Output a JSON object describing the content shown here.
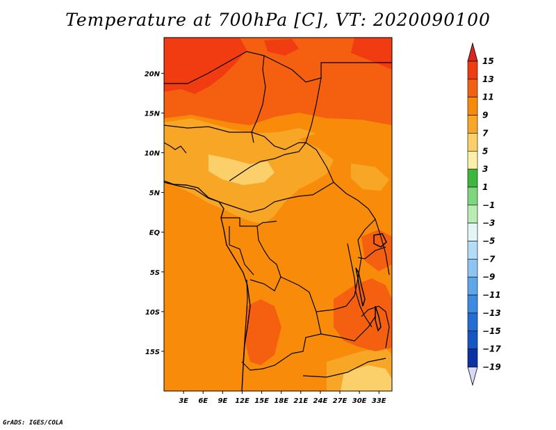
{
  "title": "Temperature at 700hPa [C], VT: 2020090100",
  "credit": "GrADS: IGES/COLA",
  "map": {
    "lat_labels": [
      "20N",
      "15N",
      "10N",
      "5N",
      "EQ",
      "5S",
      "10S",
      "15S"
    ],
    "lon_labels": [
      "3E",
      "6E",
      "9E",
      "12E",
      "15E",
      "18E",
      "21E",
      "24E",
      "27E",
      "30E",
      "33E"
    ],
    "lat_values": [
      20,
      15,
      10,
      5,
      0,
      -5,
      -10,
      -15
    ],
    "lon_values": [
      3,
      6,
      9,
      12,
      15,
      18,
      21,
      24,
      27,
      30,
      33
    ],
    "lat_range": [
      -20,
      24.5
    ],
    "lon_range": [
      0,
      35
    ]
  },
  "colorbar": {
    "labels": [
      "15",
      "13",
      "11",
      "9",
      "7",
      "5",
      "3",
      "1",
      "−1",
      "−3",
      "−5",
      "−7",
      "−9",
      "−11",
      "−13",
      "−15",
      "−17",
      "−19"
    ],
    "colors": {
      "above_15": "#d7261e",
      "13_15": "#f03c10",
      "11_13": "#f56010",
      "9_11": "#f88c0a",
      "7_9": "#f8a626",
      "5_7": "#fbd06a",
      "3_5": "#fcf0a8",
      "1_3": "#3cb83c",
      "m1_1": "#7ed67e",
      "m3_m1": "#b8ecb2",
      "m5_m3": "#e2f6f8",
      "m7_m5": "#b4dcf8",
      "m9_m7": "#8ec4f2",
      "m11_m9": "#5ea6ec",
      "m13_m11": "#3c8ae2",
      "m15_m13": "#236ed4",
      "m17_m15": "#1456c6",
      "m19_m17": "#0a32a6",
      "below_m19": "#051070",
      "under_arrow": "#d8d8f8"
    }
  }
}
